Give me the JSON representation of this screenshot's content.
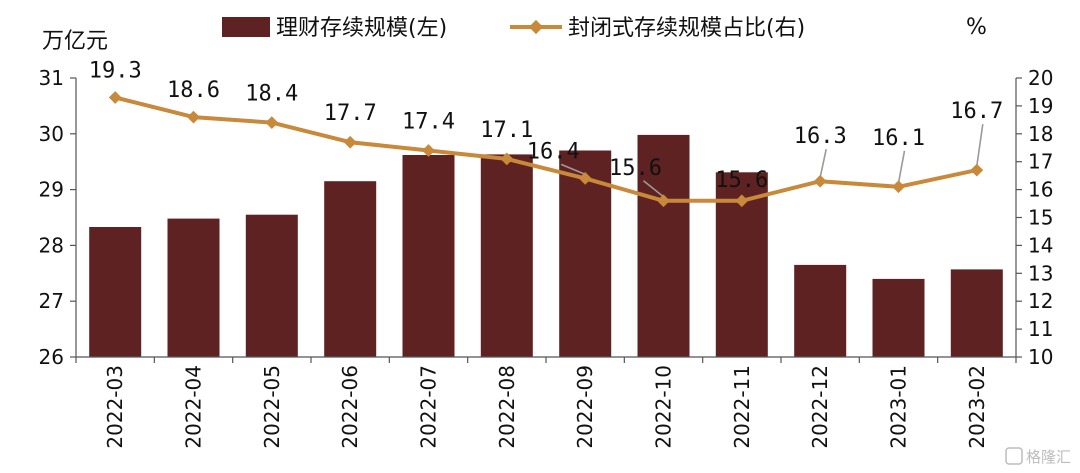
{
  "chart_data": {
    "type": "bar+line",
    "categories": [
      "2022-03",
      "2022-04",
      "2022-05",
      "2022-06",
      "2022-07",
      "2022-08",
      "2022-09",
      "2022-10",
      "2022-11",
      "2022-12",
      "2023-01",
      "2023-02"
    ],
    "series": [
      {
        "name": "理财存续规模(左)",
        "type": "bar",
        "axis": "left",
        "color": "#5f2222",
        "values": [
          28.33,
          28.48,
          28.55,
          29.15,
          29.62,
          29.63,
          29.7,
          29.98,
          29.31,
          27.65,
          27.4,
          27.57
        ]
      },
      {
        "name": "封闭式存续规模占比(右)",
        "type": "line",
        "axis": "right",
        "color": "#c8893b",
        "values": [
          19.3,
          18.6,
          18.4,
          17.7,
          17.4,
          17.1,
          16.4,
          15.6,
          15.6,
          16.3,
          16.1,
          16.7
        ],
        "labels": [
          "19.3",
          "18.6",
          "18.4",
          "17.7",
          "17.4",
          "17.1",
          "16.4",
          "15.6",
          "15.6",
          "16.3",
          "16.1",
          "16.7"
        ]
      }
    ],
    "left_axis": {
      "unit": "万亿元",
      "ylim": [
        26,
        31
      ],
      "ticks": [
        "26",
        "27",
        "28",
        "29",
        "30",
        "31"
      ]
    },
    "right_axis": {
      "unit": "%",
      "ylim": [
        10,
        20
      ],
      "ticks": [
        "10",
        "11",
        "12",
        "13",
        "14",
        "15",
        "16",
        "17",
        "18",
        "19",
        "20"
      ]
    },
    "legend": {
      "placement": "top-center",
      "items": [
        "理财存续规模(左)",
        "封闭式存续规模占比(右)"
      ]
    },
    "grid": false
  },
  "watermark": {
    "text": "格隆汇",
    "icon": "g-logo-icon"
  }
}
